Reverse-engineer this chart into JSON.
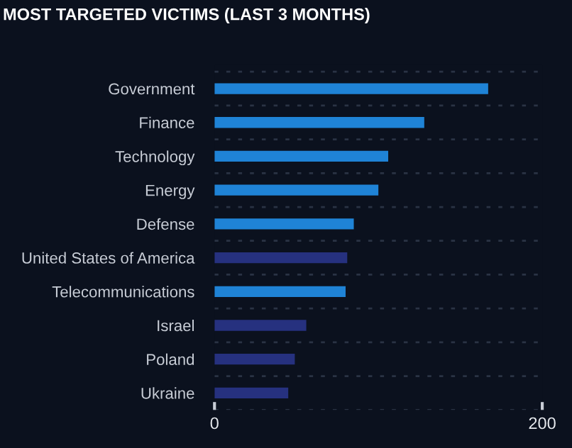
{
  "chart_data": {
    "type": "bar",
    "orientation": "horizontal",
    "title": "MOST TARGETED VICTIMS (LAST 3 MONTHS)",
    "categories": [
      "Government",
      "Finance",
      "Technology",
      "Energy",
      "Defense",
      "United States of America",
      "Telecommunications",
      "Israel",
      "Poland",
      "Ukraine"
    ],
    "values": [
      167,
      128,
      106,
      100,
      85,
      81,
      80,
      56,
      49,
      45
    ],
    "colors": [
      "#1f83d6",
      "#1f83d6",
      "#1f83d6",
      "#1f83d6",
      "#1f83d6",
      "#26317f",
      "#1f83d6",
      "#26317f",
      "#26317f",
      "#26317f"
    ],
    "xlim": [
      0,
      200
    ],
    "xticks": [
      0,
      200
    ],
    "grid": "y",
    "legend": false
  }
}
